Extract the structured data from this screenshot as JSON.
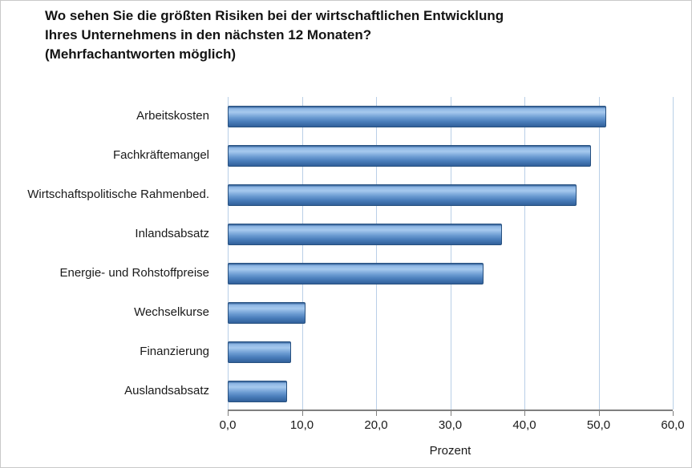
{
  "title": "Wo sehen Sie die größten Risiken bei der wirtschaftlichen Entwicklung\nIhres Unternehmens in den nächsten 12 Monaten?\n(Mehrfachantworten möglich)",
  "chart_data": {
    "type": "bar",
    "orientation": "horizontal",
    "title": "Wo sehen Sie die größten Risiken bei der wirtschaftlichen Entwicklung Ihres Unternehmens in den nächsten 12 Monaten? (Mehrfachantworten möglich)",
    "categories": [
      "Arbeitskosten",
      "Fachkräftemangel",
      "Wirtschaftspolitische Rahmenbed.",
      "Inlandsabsatz",
      "Energie- und Rohstoffpreise",
      "Wechselkurse",
      "Finanzierung",
      "Auslandsabsatz"
    ],
    "values": [
      51.0,
      49.0,
      47.0,
      37.0,
      34.5,
      10.5,
      8.5,
      8.0
    ],
    "xlabel": "Prozent",
    "ylabel": "",
    "xlim": [
      0,
      60
    ],
    "xticks": [
      0,
      10,
      20,
      30,
      40,
      50,
      60
    ],
    "xtick_labels": [
      "0,0",
      "10,0",
      "20,0",
      "30,0",
      "40,0",
      "50,0",
      "60,0"
    ],
    "grid": true,
    "legend": false,
    "bar_color": "#4a7ebb",
    "bar_highlight": "#a6c9ee",
    "grid_color": "#b9cfe7",
    "axis_color": "#7f7f7f"
  }
}
